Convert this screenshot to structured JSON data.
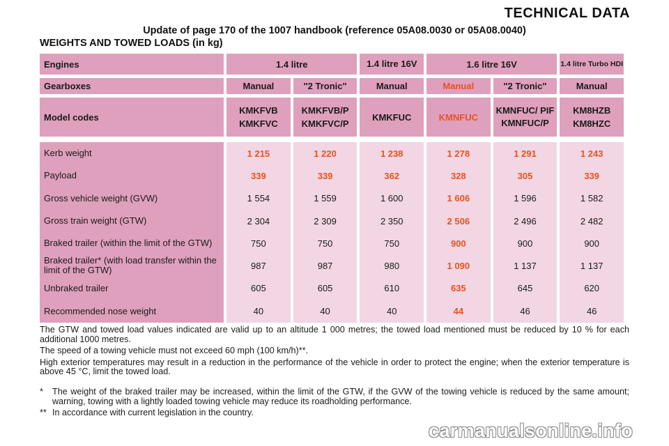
{
  "header": {
    "title": "TECHNICAL DATA",
    "subtitle": "Update of page 170 of the 1007 handbook (reference 05A08.0030 or 05A08.0040)",
    "section": "WEIGHTS AND TOWED LOADS (in kg)"
  },
  "table": {
    "engines_label": "Engines",
    "engines": [
      "1.4 litre",
      "1.4 litre 16V",
      "1.6 litre 16V",
      "1.4 litre Turbo HDI"
    ],
    "gearboxes_label": "Gearboxes",
    "gearboxes": [
      "Manual",
      "\"2 Tronic\"",
      "Manual",
      "Manual",
      "\"2 Tronic\"",
      "Manual"
    ],
    "model_codes_label": "Model codes",
    "model_codes": [
      [
        "KMKFVB",
        "KMKFVC"
      ],
      [
        "KMKFVB/P",
        "KMKFVC/P"
      ],
      [
        "KMKFUC"
      ],
      [
        "KMNFUC"
      ],
      [
        "KMNFUC/ PIF",
        "KMNFUC/P"
      ],
      [
        "KM8HZB",
        "KM8HZC"
      ]
    ],
    "rows": [
      {
        "label": "Kerb weight",
        "values": [
          "1 215",
          "1 220",
          "1 238",
          "1 278",
          "1 291",
          "1 243"
        ]
      },
      {
        "label": "Payload",
        "values": [
          "339",
          "339",
          "362",
          "328",
          "305",
          "339"
        ]
      },
      {
        "label": "Gross vehicle weight (GVW)",
        "values": [
          "1 554",
          "1 559",
          "1 600",
          "1 606",
          "1 596",
          "1 582"
        ]
      },
      {
        "label": "Gross train weight (GTW)",
        "values": [
          "2 304",
          "2 309",
          "2 350",
          "2 506",
          "2 496",
          "2 482"
        ]
      },
      {
        "label": "Braked trailer (within the limit of the GTW)",
        "values": [
          "750",
          "750",
          "750",
          "900",
          "900",
          "900"
        ]
      },
      {
        "label": "Braked trailer* (with load transfer within the limit of the GTW)",
        "values": [
          "987",
          "987",
          "980",
          "1 090",
          "1 137",
          "1 137"
        ]
      },
      {
        "label": "Unbraked trailer",
        "values": [
          "605",
          "605",
          "610",
          "635",
          "645",
          "620"
        ]
      },
      {
        "label": "Recommended nose weight",
        "values": [
          "40",
          "40",
          "40",
          "44",
          "46",
          "46"
        ]
      }
    ],
    "highlight_color": "#e8521f"
  },
  "notes": [
    "The GTW and towed load values indicated are valid up to an altitude 1 000 metres; the towed load mentioned must be reduced by 10 % for each additional 1000 metres.",
    "The speed of a towing vehicle must not exceed 60 mph (100 km/h)**.",
    "High exterior temperatures may result in a reduction in the performance of the vehicle in order to protect the engine; when the exterior temperature is above 45 °C, limit the towed load."
  ],
  "footnotes": [
    {
      "marker": "*",
      "text": "The weight of the braked trailer may be increased, within the limit of the GTW, if the GVW of the towing vehicle is reduced by the same amount; warning, towing with a lightly loaded towing vehicle may reduce its roadholding performance."
    },
    {
      "marker": "**",
      "text": "In accordance with current legislation in the country."
    }
  ],
  "watermark": "carmanualsonline.info"
}
